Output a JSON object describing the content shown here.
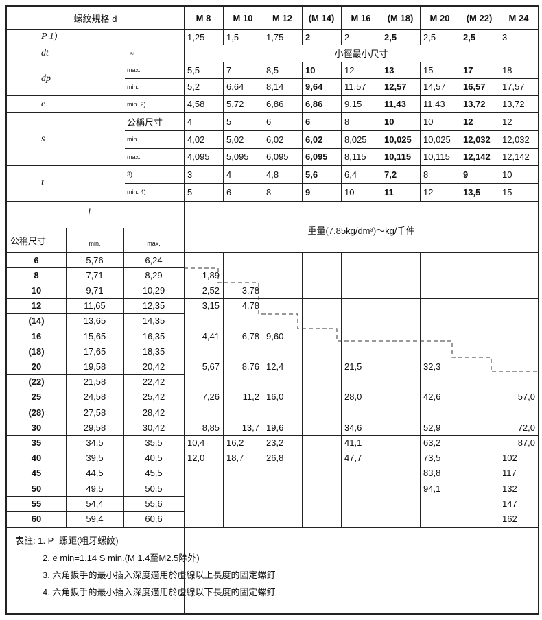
{
  "header": {
    "spec_label": "螺紋規格 d",
    "sizes": [
      "M 8",
      "M 10",
      "M 12",
      "(M 14)",
      "M 16",
      "(M 18)",
      "M 20",
      "(M 22)",
      "M 24"
    ],
    "bold": [
      false,
      false,
      false,
      true,
      false,
      true,
      false,
      true,
      false
    ]
  },
  "rows": [
    {
      "sym": "P 1)",
      "sub": "",
      "vals": [
        "1,25",
        "1,5",
        "1,75",
        "2",
        "2",
        "2,5",
        "2,5",
        "2,5",
        "3"
      ]
    },
    {
      "sym": "dt",
      "sub": "≈",
      "span": "小徑最小尺寸"
    },
    {
      "sym": "dp",
      "sub": "max.",
      "vals": [
        "5,5",
        "7",
        "8,5",
        "10",
        "12",
        "13",
        "15",
        "17",
        "18"
      ]
    },
    {
      "sym": "",
      "sub": "min.",
      "vals": [
        "5,2",
        "6,64",
        "8,14",
        "9,64",
        "11,57",
        "12,57",
        "14,57",
        "16,57",
        "17,57"
      ]
    },
    {
      "sym": "e",
      "sub": "min. 2)",
      "vals": [
        "4,58",
        "5,72",
        "6,86",
        "6,86",
        "9,15",
        "11,43",
        "11,43",
        "13,72",
        "13,72"
      ]
    },
    {
      "sym": "",
      "sub": "公稱尺寸",
      "vals": [
        "4",
        "5",
        "6",
        "6",
        "8",
        "10",
        "10",
        "12",
        "12"
      ]
    },
    {
      "sym": "s",
      "sub": "min.",
      "vals": [
        "4,02",
        "5,02",
        "6,02",
        "6,02",
        "8,025",
        "10,025",
        "10,025",
        "12,032",
        "12,032"
      ]
    },
    {
      "sym": "",
      "sub": "max.",
      "vals": [
        "4,095",
        "5,095",
        "6,095",
        "6,095",
        "8,115",
        "10,115",
        "10,115",
        "12,142",
        "12,142"
      ]
    },
    {
      "sym": "",
      "sub": "3)",
      "vals": [
        "3",
        "4",
        "4,8",
        "5,6",
        "6,4",
        "7,2",
        "8",
        "9",
        "10"
      ]
    },
    {
      "sym": "t",
      "sub": "min. 4)",
      "vals": [
        "5",
        "6",
        "8",
        "9",
        "10",
        "11",
        "12",
        "13,5",
        "15"
      ]
    }
  ],
  "lower_header": {
    "l_label": "l",
    "nominal": "公稱尺寸",
    "min": "min.",
    "max": "max.",
    "weight_title": "重量(7.85kg/dm³)～kg/千件"
  },
  "lengths": [
    [
      "6",
      "5,76",
      "6,24"
    ],
    [
      "8",
      "7,71",
      "8,29"
    ],
    [
      "10",
      "9,71",
      "10,29"
    ],
    [
      "12",
      "11,65",
      "12,35"
    ],
    [
      "(14)",
      "13,65",
      "14,35"
    ],
    [
      "16",
      "15,65",
      "16,35"
    ],
    [
      "(18)",
      "17,65",
      "18,35"
    ],
    [
      "20",
      "19,58",
      "20,42"
    ],
    [
      "(22)",
      "21,58",
      "22,42"
    ],
    [
      "25",
      "24,58",
      "25,42"
    ],
    [
      "(28)",
      "27,58",
      "28,42"
    ],
    [
      "30",
      "29,58",
      "30,42"
    ],
    [
      "35",
      "34,5",
      "35,5"
    ],
    [
      "40",
      "39,5",
      "40,5"
    ],
    [
      "45",
      "44,5",
      "45,5"
    ],
    [
      "50",
      "49,5",
      "50,5"
    ],
    [
      "55",
      "54,4",
      "55,6"
    ],
    [
      "60",
      "59,4",
      "60,6"
    ]
  ],
  "weights": [
    [
      null,
      null,
      null,
      null,
      null,
      null,
      null,
      null,
      null
    ],
    [
      "1,89",
      null,
      null,
      null,
      null,
      null,
      null,
      null,
      null
    ],
    [
      "2,52",
      "3,78",
      null,
      null,
      null,
      null,
      null,
      null,
      null
    ],
    [
      "3,15",
      "4,78",
      null,
      null,
      null,
      null,
      null,
      null,
      null
    ],
    [
      null,
      null,
      null,
      null,
      null,
      null,
      null,
      null,
      null
    ],
    [
      "4,41",
      "6,78",
      "9,60",
      null,
      null,
      null,
      null,
      null,
      null
    ],
    [
      null,
      null,
      null,
      null,
      null,
      null,
      null,
      null,
      null
    ],
    [
      "5,67",
      "8,76",
      "12,4",
      null,
      "21,5",
      null,
      "32,3",
      null,
      null
    ],
    [
      null,
      null,
      null,
      null,
      null,
      null,
      null,
      null,
      null
    ],
    [
      "7,26",
      "11,2",
      "16,0",
      null,
      "28,0",
      null,
      "42,6",
      null,
      "57,0"
    ],
    [
      null,
      null,
      null,
      null,
      null,
      null,
      null,
      null,
      null
    ],
    [
      "8,85",
      "13,7",
      "19,6",
      null,
      "34,6",
      null,
      "52,9",
      null,
      "72,0"
    ],
    [
      "10,4",
      "16,2",
      "23,2",
      null,
      "41,1",
      null,
      "63,2",
      null,
      "87,0"
    ],
    [
      "12,0",
      "18,7",
      "26,8",
      null,
      "47,7",
      null,
      "73,5",
      null,
      "102"
    ],
    [
      null,
      null,
      null,
      null,
      null,
      null,
      "83,8",
      null,
      "117"
    ],
    [
      null,
      null,
      null,
      null,
      null,
      null,
      "94,1",
      null,
      "132"
    ],
    [
      null,
      null,
      null,
      null,
      null,
      null,
      null,
      null,
      "147"
    ],
    [
      null,
      null,
      null,
      null,
      null,
      null,
      null,
      null,
      "162"
    ]
  ],
  "notes": [
    "表註: 1.  P=螺距(粗牙螺紋)",
    "2.  e min=1.14 S min.(M 1.4至M2.5除外)",
    "3.  六角扳手的最小插入深度適用於虛線以上長度的固定螺釘",
    "4.  六角扳手的最小插入深度適用於虛線以下長度的固定螺釘"
  ]
}
